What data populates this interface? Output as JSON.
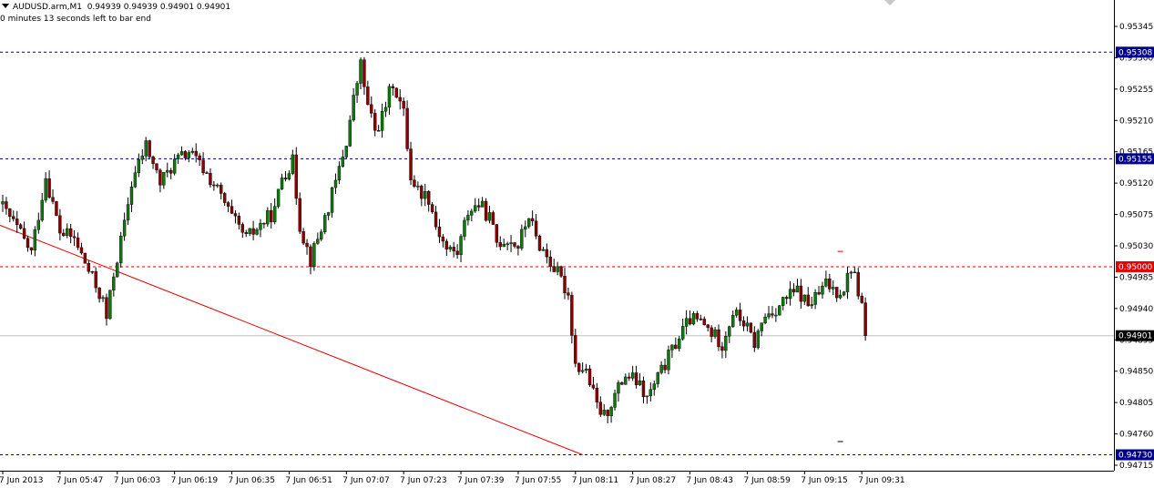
{
  "header": {
    "symbol": "AUDUSD.arm,M1",
    "ohlc": "0.94939 0.94939 0.94901 0.94901",
    "countdown": "0 minutes 13 seconds left to bar end"
  },
  "colors": {
    "background": "#ffffff",
    "bull_body": "#0b7a0b",
    "bear_body": "#8b0000",
    "wick": "#000000",
    "blue_level": "#00008b",
    "red_level": "#e60000",
    "trendline": "#e60000",
    "price_line": "#c0c0c0"
  },
  "chart_data": {
    "type": "candlestick",
    "y_ticks": [
      "0.95345",
      "0.95300",
      "0.95255",
      "0.95210",
      "0.95165",
      "0.95120",
      "0.95075",
      "0.95030",
      "0.94985",
      "0.94940",
      "0.94895",
      "0.94850",
      "0.94805",
      "0.94760",
      "0.94715"
    ],
    "x_ticks": [
      {
        "label": "7 Jun 2013",
        "bar": 0
      },
      {
        "label": "7 Jun 05:47",
        "bar": 16
      },
      {
        "label": "7 Jun 06:03",
        "bar": 32
      },
      {
        "label": "7 Jun 06:19",
        "bar": 48
      },
      {
        "label": "7 Jun 06:35",
        "bar": 64
      },
      {
        "label": "7 Jun 06:51",
        "bar": 80
      },
      {
        "label": "7 Jun 07:07",
        "bar": 96
      },
      {
        "label": "7 Jun 07:23",
        "bar": 112
      },
      {
        "label": "7 Jun 07:39",
        "bar": 128
      },
      {
        "label": "7 Jun 07:55",
        "bar": 144
      },
      {
        "label": "7 Jun 08:11",
        "bar": 160
      },
      {
        "label": "7 Jun 08:27",
        "bar": 176
      },
      {
        "label": "7 Jun 08:43",
        "bar": 192
      },
      {
        "label": "7 Jun 08:59",
        "bar": 208
      },
      {
        "label": "7 Jun 09:15",
        "bar": 224
      },
      {
        "label": "7 Jun 09:31",
        "bar": 240
      }
    ],
    "levels": [
      {
        "price": 0.95308,
        "label": "0.95308",
        "kind": "blue"
      },
      {
        "price": 0.95155,
        "label": "0.95155",
        "kind": "blue"
      },
      {
        "price": 0.95,
        "label": "0.95000",
        "kind": "red"
      },
      {
        "price": 0.9473,
        "label": "0.94730",
        "kind": "blue"
      }
    ],
    "current_price": {
      "price": 0.94901,
      "label": "0.94901"
    },
    "trendline": [
      {
        "bar": -1,
        "price": 0.9506
      },
      {
        "bar": 162,
        "price": 0.9473
      }
    ],
    "markers": [
      {
        "bar": 234,
        "price": 0.95022
      },
      {
        "bar": 234,
        "price": 0.94749
      }
    ],
    "series": [
      {
        "name": "AUDUSD.arm,M1",
        "control_points": [
          [
            0,
            0.95085
          ],
          [
            4,
            0.95055
          ],
          [
            8,
            0.9502
          ],
          [
            12,
            0.9513
          ],
          [
            16,
            0.9505
          ],
          [
            20,
            0.9504
          ],
          [
            23,
            0.95005
          ],
          [
            28,
            0.9495
          ],
          [
            29,
            0.94925
          ],
          [
            31,
            0.9499
          ],
          [
            34,
            0.9506
          ],
          [
            36,
            0.9512
          ],
          [
            40,
            0.95175
          ],
          [
            44,
            0.9512
          ],
          [
            48,
            0.9515
          ],
          [
            52,
            0.95165
          ],
          [
            56,
            0.9514
          ],
          [
            60,
            0.9511
          ],
          [
            64,
            0.9507
          ],
          [
            68,
            0.9504
          ],
          [
            72,
            0.9506
          ],
          [
            76,
            0.9508
          ],
          [
            78,
            0.9513
          ],
          [
            81,
            0.9515
          ],
          [
            83,
            0.9506
          ],
          [
            86,
            0.9501
          ],
          [
            90,
            0.9507
          ],
          [
            93,
            0.9512
          ],
          [
            96,
            0.9518
          ],
          [
            98,
            0.9524
          ],
          [
            100,
            0.9529
          ],
          [
            102,
            0.9523
          ],
          [
            104,
            0.95195
          ],
          [
            106,
            0.95215
          ],
          [
            109,
            0.95265
          ],
          [
            112,
            0.9522
          ],
          [
            114,
            0.9513
          ],
          [
            116,
            0.9511
          ],
          [
            119,
            0.951
          ],
          [
            121,
            0.9506
          ],
          [
            124,
            0.95025
          ],
          [
            127,
            0.9502
          ],
          [
            130,
            0.9508
          ],
          [
            133,
            0.9509
          ],
          [
            136,
            0.9507
          ],
          [
            138,
            0.95035
          ],
          [
            141,
            0.9504
          ],
          [
            144,
            0.9503
          ],
          [
            147,
            0.95075
          ],
          [
            149,
            0.9504
          ],
          [
            152,
            0.95015
          ],
          [
            155,
            0.9499
          ],
          [
            158,
            0.9496
          ],
          [
            160,
            0.9486
          ],
          [
            163,
            0.9485
          ],
          [
            166,
            0.948
          ],
          [
            168,
            0.94785
          ],
          [
            171,
            0.94815
          ],
          [
            174,
            0.94845
          ],
          [
            177,
            0.94835
          ],
          [
            180,
            0.9481
          ],
          [
            183,
            0.9484
          ],
          [
            186,
            0.9487
          ],
          [
            189,
            0.949
          ],
          [
            192,
            0.94925
          ],
          [
            195,
            0.9492
          ],
          [
            198,
            0.94905
          ],
          [
            201,
            0.9489
          ],
          [
            204,
            0.94935
          ],
          [
            207,
            0.9492
          ],
          [
            210,
            0.9489
          ],
          [
            213,
            0.9493
          ],
          [
            216,
            0.9494
          ],
          [
            219,
            0.94955
          ],
          [
            222,
            0.94965
          ],
          [
            225,
            0.94945
          ],
          [
            228,
            0.9496
          ],
          [
            230,
            0.94975
          ],
          [
            233,
            0.94965
          ],
          [
            235,
            0.9497
          ],
          [
            237,
            0.95
          ],
          [
            238,
            0.94985
          ],
          [
            240,
            0.94945
          ],
          [
            241,
            0.94901
          ]
        ]
      }
    ]
  }
}
